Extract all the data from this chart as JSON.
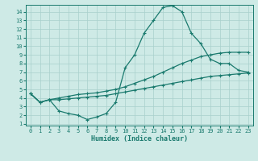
{
  "xlabel": "Humidex (Indice chaleur)",
  "x": [
    0,
    1,
    2,
    3,
    4,
    5,
    6,
    7,
    8,
    9,
    10,
    11,
    12,
    13,
    14,
    15,
    16,
    17,
    18,
    19,
    20,
    21,
    22,
    23
  ],
  "line1": [
    4.5,
    3.5,
    3.8,
    3.8,
    3.9,
    4.0,
    4.1,
    4.2,
    4.3,
    4.5,
    4.7,
    4.9,
    5.1,
    5.3,
    5.5,
    5.7,
    5.9,
    6.1,
    6.3,
    6.5,
    6.6,
    6.7,
    6.8,
    6.9
  ],
  "line2": [
    4.5,
    3.5,
    3.8,
    4.0,
    4.2,
    4.4,
    4.5,
    4.6,
    4.8,
    5.0,
    5.3,
    5.7,
    6.1,
    6.5,
    7.0,
    7.5,
    8.0,
    8.4,
    8.8,
    9.0,
    9.2,
    9.3,
    9.3,
    9.3
  ],
  "line3": [
    4.5,
    3.5,
    3.8,
    2.5,
    2.2,
    2.0,
    1.5,
    1.8,
    2.2,
    3.5,
    7.5,
    9.0,
    11.5,
    13.0,
    14.5,
    14.7,
    14.0,
    11.5,
    10.3,
    8.5,
    8.0,
    8.0,
    7.2,
    7.0
  ],
  "line_color": "#1a7a6e",
  "bg_color": "#ceeae6",
  "grid_color": "#a8d0cc",
  "ylim": [
    0.8,
    14.8
  ],
  "xlim": [
    -0.5,
    23.5
  ],
  "yticks": [
    1,
    2,
    3,
    4,
    5,
    6,
    7,
    8,
    9,
    10,
    11,
    12,
    13,
    14
  ],
  "xticks": [
    0,
    1,
    2,
    3,
    4,
    5,
    6,
    7,
    8,
    9,
    10,
    11,
    12,
    13,
    14,
    15,
    16,
    17,
    18,
    19,
    20,
    21,
    22,
    23
  ],
  "tick_fontsize": 5.0,
  "xlabel_fontsize": 6.0
}
